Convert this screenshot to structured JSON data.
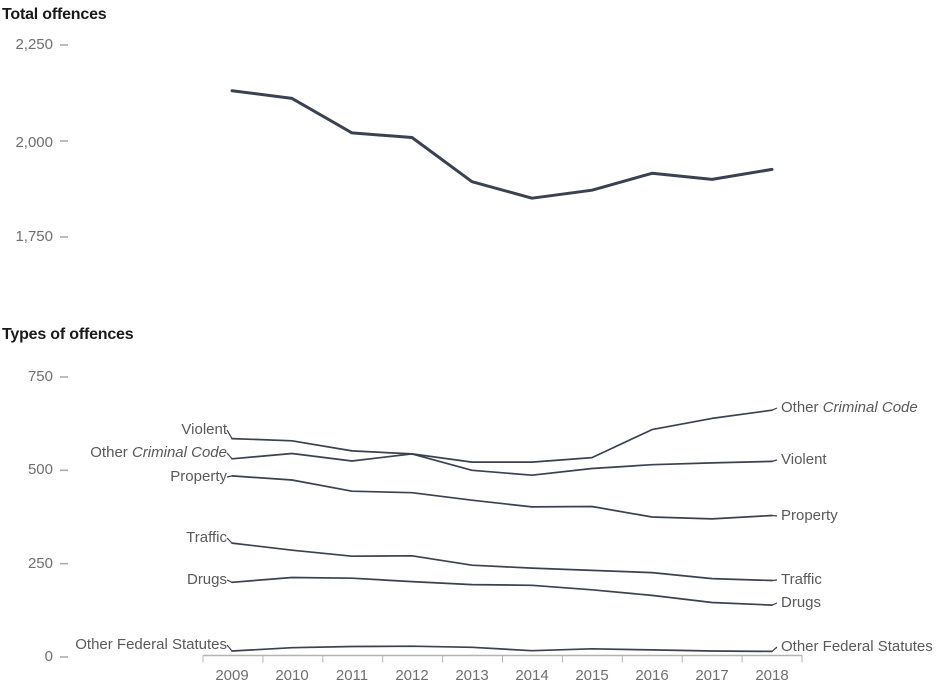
{
  "colors": {
    "line": "#3a4150",
    "axis": "#b3b3b3",
    "tick_dash": "#a8a8a8",
    "tick_label": "#6f6f6f",
    "series_label": "#595959",
    "title": "#1a1a1a"
  },
  "chart_data": [
    {
      "type": "line",
      "title": "Total offences",
      "x_labels": [
        "2009",
        "2010",
        "2011",
        "2012",
        "2013",
        "2014",
        "2015",
        "2016",
        "2017",
        "2018"
      ],
      "series": [
        {
          "name": "Total offences",
          "values": [
            2131,
            2111,
            2021,
            2009,
            1894,
            1851,
            1872,
            1916,
            1900,
            1926
          ]
        }
      ],
      "ylim": [
        1750,
        2250
      ],
      "yticks": [
        "2,250",
        "2,000",
        "1,750"
      ],
      "ytick_values": [
        2250,
        2000,
        1750
      ],
      "xlabel": "",
      "ylabel": "",
      "grid": false,
      "legend": "none"
    },
    {
      "type": "line",
      "title": "Types of offences",
      "x_labels": [
        "2009",
        "2010",
        "2011",
        "2012",
        "2013",
        "2014",
        "2015",
        "2016",
        "2017",
        "2018"
      ],
      "series": [
        {
          "name": "Violent",
          "values": [
            585,
            579,
            552,
            544,
            500,
            487,
            505,
            515,
            520,
            524
          ]
        },
        {
          "name": "Other Criminal Code",
          "values": [
            531,
            545,
            525,
            544,
            522,
            522,
            534,
            609,
            639,
            661
          ]
        },
        {
          "name": "Property",
          "values": [
            485,
            474,
            444,
            440,
            420,
            402,
            403,
            375,
            370,
            379
          ]
        },
        {
          "name": "Traffic",
          "values": [
            305,
            286,
            270,
            271,
            246,
            238,
            232,
            226,
            210,
            205
          ]
        },
        {
          "name": "Drugs",
          "values": [
            200,
            213,
            211,
            202,
            194,
            192,
            180,
            165,
            146,
            139
          ]
        },
        {
          "name": "Other Federal Statutes",
          "values": [
            16,
            25,
            28,
            29,
            26,
            17,
            22,
            19,
            16,
            15
          ]
        }
      ],
      "ylim": [
        0,
        750
      ],
      "yticks": [
        "750",
        "500",
        "250",
        "0"
      ],
      "ytick_values": [
        750,
        500,
        250,
        0
      ],
      "xlabel": "",
      "ylabel": "",
      "grid": false,
      "legend": "direct labels on both sides of lines"
    }
  ],
  "left_labels": [
    {
      "plain": "Violent",
      "italic": ""
    },
    {
      "plain": "Other ",
      "italic": "Criminal Code"
    },
    {
      "plain": "Property",
      "italic": ""
    },
    {
      "plain": "Traffic",
      "italic": ""
    },
    {
      "plain": "Drugs",
      "italic": ""
    },
    {
      "plain": "Other Federal Statutes",
      "italic": ""
    }
  ],
  "right_labels": [
    {
      "plain": "Other ",
      "italic": "Criminal Code"
    },
    {
      "plain": "Violent",
      "italic": ""
    },
    {
      "plain": "Property",
      "italic": ""
    },
    {
      "plain": "Traffic",
      "italic": ""
    },
    {
      "plain": "Drugs",
      "italic": ""
    },
    {
      "plain": "Other Federal Statutes",
      "italic": ""
    }
  ]
}
